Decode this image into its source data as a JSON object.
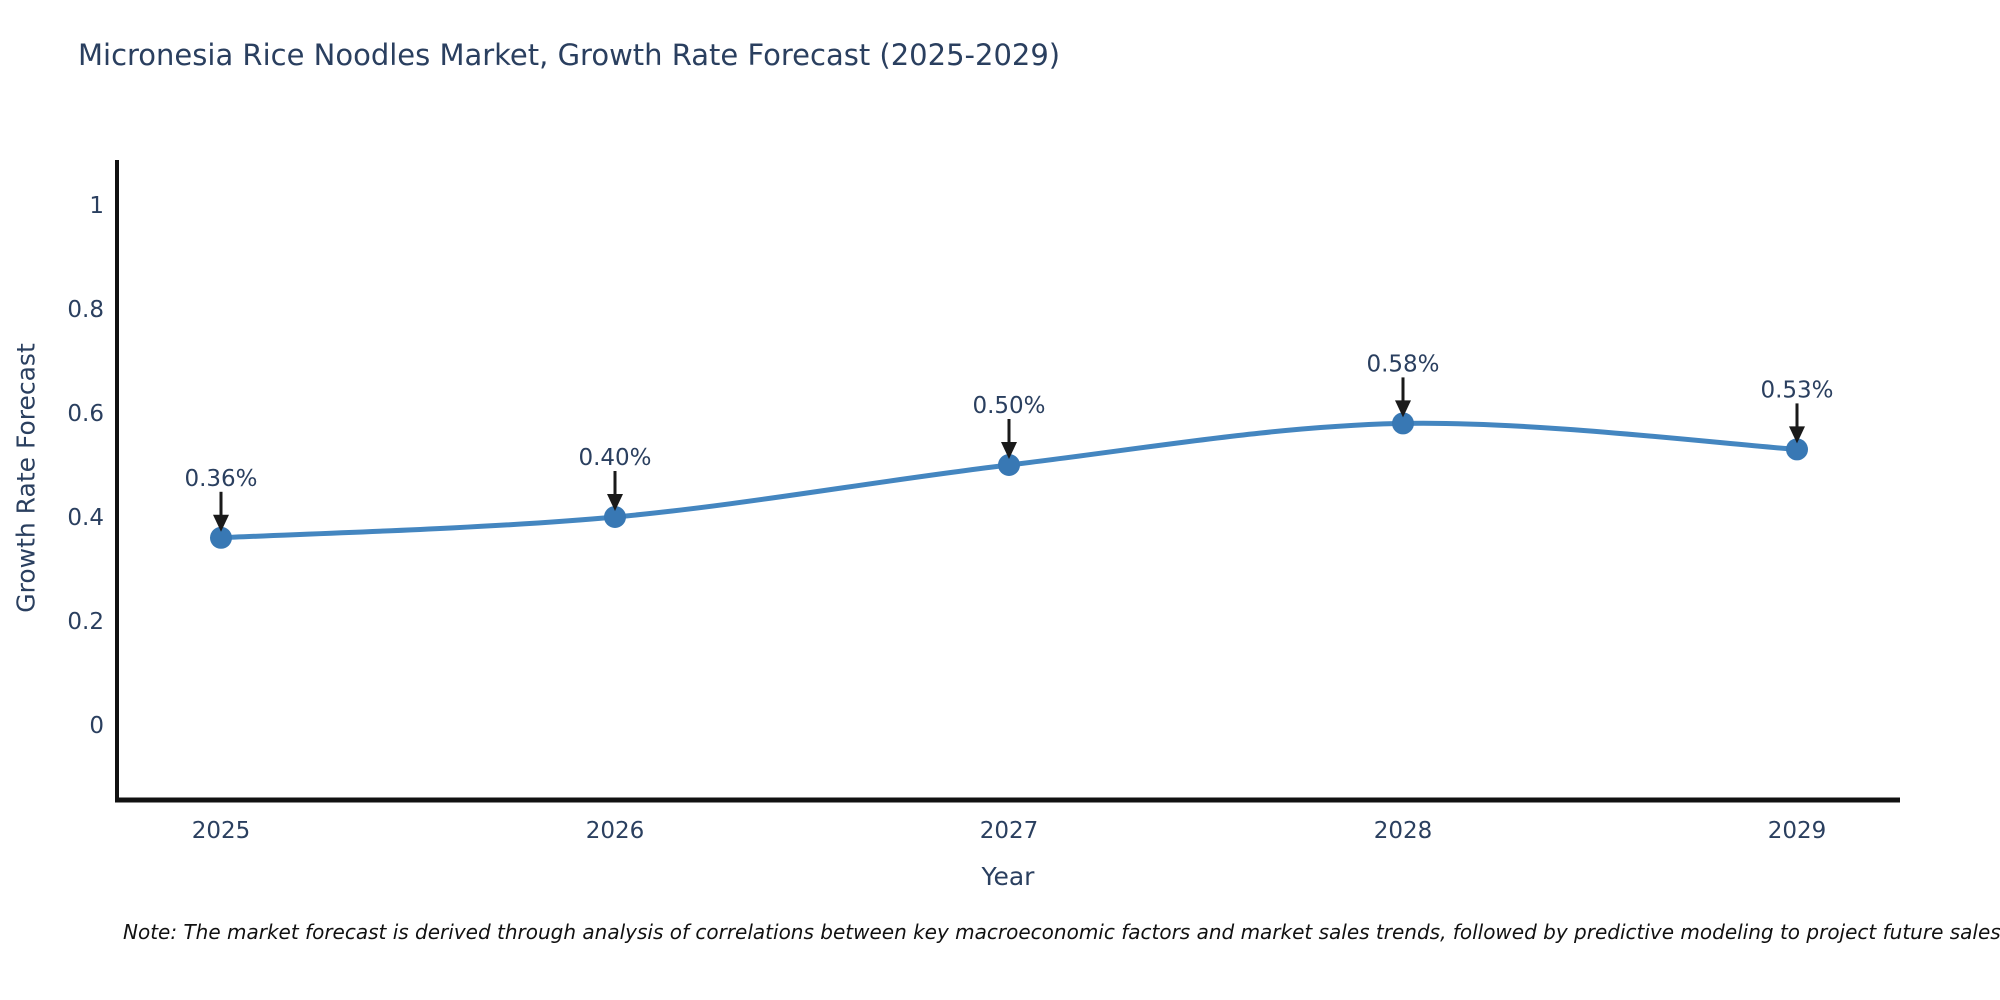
{
  "chart_data": {
    "type": "line",
    "title": "Micronesia Rice Noodles Market, Growth Rate Forecast (2025-2029)",
    "xlabel": "Year",
    "ylabel": "Growth Rate Forecast",
    "categories": [
      "2025",
      "2026",
      "2027",
      "2028",
      "2029"
    ],
    "values": [
      0.36,
      0.4,
      0.5,
      0.58,
      0.53
    ],
    "point_labels": [
      "0.36%",
      "0.40%",
      "0.50%",
      "0.58%",
      "0.53%"
    ],
    "y_ticks": [
      0,
      0.2,
      0.4,
      0.6,
      0.8,
      1
    ],
    "y_tick_labels": [
      "0",
      "0.2",
      "0.4",
      "0.6",
      "0.8",
      "1"
    ],
    "ylim": [
      -0.14,
      1.09
    ],
    "grid": false,
    "legend": "none",
    "line_shape": "spline",
    "colors": {
      "line": "#4486c0",
      "marker": "#3878b4",
      "arrow": "#1a1a1a",
      "axis": "#111111",
      "text": "#2a3f5f",
      "note_text": "#111111"
    },
    "note": "Note: The market forecast is derived through analysis of correlations between key macroeconomic factors and market sales trends, followed by predictive modeling to project future sales"
  }
}
